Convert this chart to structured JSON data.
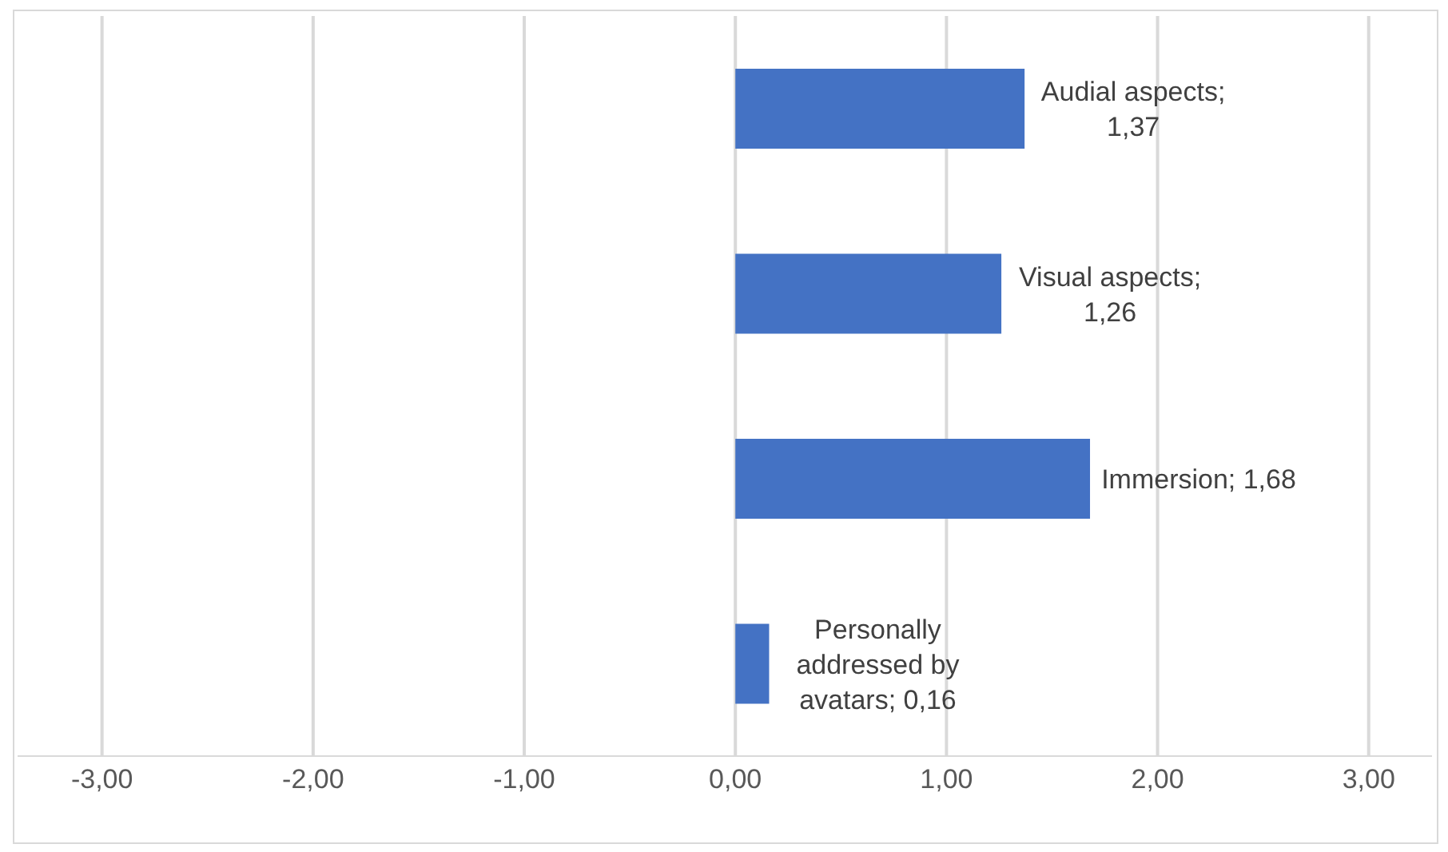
{
  "chart_data": {
    "type": "bar",
    "orientation": "horizontal",
    "categories": [
      null,
      null,
      null,
      null
    ],
    "values": [
      1.37,
      1.26,
      1.68,
      0.16
    ],
    "value_labels": [
      "Audial aspects; 1,37",
      "Visual aspects; 1,26",
      "Immersion; 1,68",
      "Personally addressed by avatars; 0,16"
    ],
    "color": "#4472c4",
    "xlim": [
      -3.4,
      3.3
    ],
    "xticks": [
      {
        "value": -3,
        "label": "-3,00"
      },
      {
        "value": -2,
        "label": "-2,00"
      },
      {
        "value": -1,
        "label": "-1,00"
      },
      {
        "value": 0,
        "label": "0,00"
      },
      {
        "value": 1,
        "label": "1,00"
      },
      {
        "value": 2,
        "label": "2,00"
      },
      {
        "value": 3,
        "label": "3,00"
      }
    ],
    "grid": "x",
    "tick_labels": "x"
  }
}
